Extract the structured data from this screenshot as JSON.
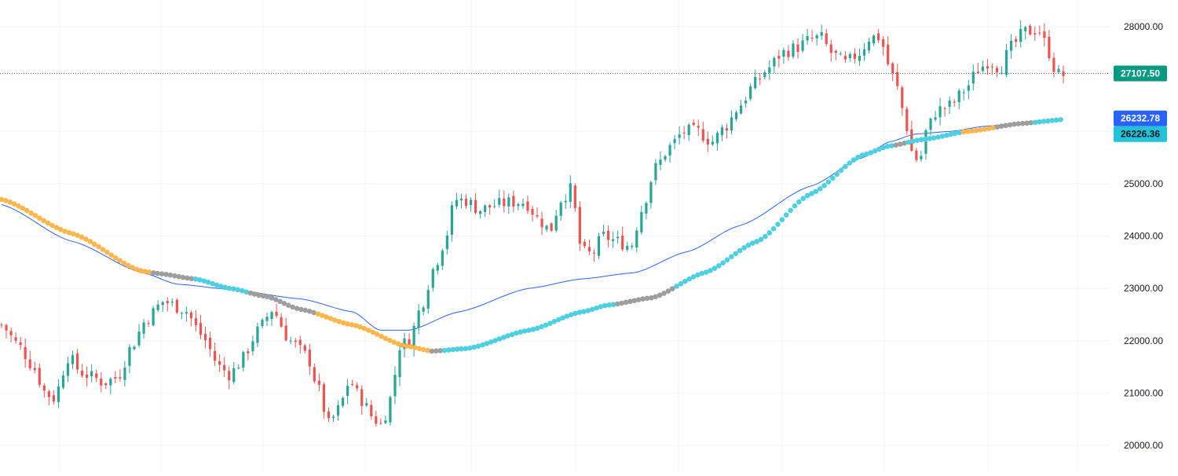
{
  "chart_data": {
    "type": "candlestick",
    "y_axis": {
      "position": "right",
      "range": [
        19550,
        28450
      ],
      "ticks": [
        20000,
        21000,
        22000,
        23000,
        24000,
        25000,
        28000
      ],
      "tick_labels": [
        "20000.00",
        "21000.00",
        "22000.00",
        "23000.00",
        "24000.00",
        "25000.00",
        "28000.00"
      ]
    },
    "grid": true,
    "last_price": {
      "value": 27107.5,
      "label": "27107.50",
      "style": "dotted"
    },
    "value_labels": [
      {
        "value": 26232.78,
        "label": "26232.78",
        "color": "#2962ff"
      },
      {
        "value": 26226.36,
        "label": "26226.36",
        "color": "#22c3d6"
      }
    ],
    "colors": {
      "up": "#26a69a",
      "down": "#ef5350",
      "grid": "#f0f3fa",
      "axis_text": "#131722",
      "last_price_bg": "#089981",
      "sma_line": "#2962ff",
      "trend_dots": {
        "down": "#ffb74d",
        "neutral": "#9e9e9e",
        "up": "#4dd0e1"
      }
    },
    "candles": {
      "count": 225,
      "keyframes": [
        [
          0,
          22300
        ],
        [
          10,
          21900
        ],
        [
          18,
          21500
        ],
        [
          25,
          21000
        ],
        [
          30,
          20900
        ],
        [
          38,
          21700
        ],
        [
          45,
          21400
        ],
        [
          52,
          21300
        ],
        [
          58,
          21200
        ],
        [
          66,
          21300
        ],
        [
          74,
          21900
        ],
        [
          82,
          22400
        ],
        [
          92,
          22750
        ],
        [
          104,
          22600
        ],
        [
          114,
          22100
        ],
        [
          124,
          21500
        ],
        [
          130,
          21350
        ],
        [
          136,
          21600
        ],
        [
          146,
          22200
        ],
        [
          154,
          22600
        ],
        [
          164,
          22000
        ],
        [
          174,
          21700
        ],
        [
          180,
          21100
        ],
        [
          186,
          20400
        ],
        [
          192,
          20700
        ],
        [
          198,
          21250
        ],
        [
          204,
          20900
        ],
        [
          212,
          20500
        ],
        [
          216,
          20400
        ],
        [
          222,
          20950
        ],
        [
          226,
          21900
        ],
        [
          232,
          22000
        ],
        [
          238,
          22600
        ],
        [
          246,
          23400
        ],
        [
          252,
          23900
        ],
        [
          258,
          24700
        ],
        [
          264,
          24680
        ],
        [
          272,
          24500
        ],
        [
          282,
          24600
        ],
        [
          290,
          24650
        ],
        [
          298,
          24650
        ],
        [
          306,
          24300
        ],
        [
          312,
          24100
        ],
        [
          318,
          24700
        ],
        [
          324,
          24900
        ],
        [
          330,
          23700
        ],
        [
          336,
          23650
        ],
        [
          342,
          24000
        ],
        [
          350,
          23900
        ],
        [
          358,
          23800
        ],
        [
          364,
          24500
        ],
        [
          372,
          25300
        ],
        [
          380,
          25700
        ],
        [
          388,
          26000
        ],
        [
          396,
          26000
        ],
        [
          404,
          25800
        ],
        [
          412,
          26100
        ],
        [
          420,
          26500
        ],
        [
          428,
          26900
        ],
        [
          436,
          27200
        ],
        [
          444,
          27500
        ],
        [
          452,
          27600
        ],
        [
          460,
          27750
        ],
        [
          466,
          27800
        ],
        [
          472,
          27500
        ],
        [
          480,
          27300
        ],
        [
          488,
          27500
        ],
        [
          494,
          27800
        ],
        [
          500,
          27800
        ],
        [
          504,
          27300
        ],
        [
          510,
          26800
        ],
        [
          514,
          26200
        ],
        [
          518,
          25600
        ],
        [
          522,
          25400
        ],
        [
          526,
          26000
        ],
        [
          532,
          26400
        ],
        [
          540,
          26500
        ],
        [
          548,
          26800
        ],
        [
          556,
          27200
        ],
        [
          562,
          27350
        ],
        [
          568,
          27200
        ],
        [
          574,
          27600
        ],
        [
          582,
          27900
        ],
        [
          590,
          27950
        ],
        [
          596,
          27500
        ],
        [
          600,
          27100
        ],
        [
          604,
          27080
        ]
      ]
    },
    "sma_line": {
      "points": [
        [
          0,
          24600
        ],
        [
          40,
          23900
        ],
        [
          80,
          23300
        ],
        [
          100,
          23080
        ],
        [
          130,
          22980
        ],
        [
          170,
          22800
        ],
        [
          200,
          22550
        ],
        [
          215,
          22200
        ],
        [
          232,
          22200
        ],
        [
          260,
          22550
        ],
        [
          300,
          23000
        ],
        [
          330,
          23180
        ],
        [
          360,
          23300
        ],
        [
          390,
          23700
        ],
        [
          420,
          24200
        ],
        [
          460,
          24950
        ],
        [
          490,
          25500
        ],
        [
          505,
          25800
        ],
        [
          520,
          25950
        ],
        [
          540,
          26000
        ],
        [
          560,
          26100
        ],
        [
          590,
          26200
        ],
        [
          604,
          26232.78
        ]
      ]
    },
    "trend_dots": {
      "points": [
        [
          0,
          24700
        ],
        [
          40,
          24050
        ],
        [
          80,
          23330
        ],
        [
          90,
          23280
        ],
        [
          110,
          23180
        ],
        [
          130,
          23000
        ],
        [
          150,
          22850
        ],
        [
          170,
          22600
        ],
        [
          200,
          22300
        ],
        [
          230,
          21900
        ],
        [
          245,
          21800
        ],
        [
          265,
          21850
        ],
        [
          300,
          22200
        ],
        [
          330,
          22550
        ],
        [
          345,
          22680
        ],
        [
          370,
          22820
        ],
        [
          400,
          23300
        ],
        [
          430,
          23900
        ],
        [
          460,
          24800
        ],
        [
          490,
          25550
        ],
        [
          505,
          25720
        ],
        [
          525,
          25850
        ],
        [
          550,
          26000
        ],
        [
          580,
          26150
        ],
        [
          604,
          26226.36
        ]
      ],
      "segments": [
        {
          "from": 0,
          "to": 86,
          "trend": "down"
        },
        {
          "from": 86,
          "to": 110,
          "trend": "neutral"
        },
        {
          "from": 110,
          "to": 140,
          "trend": "up"
        },
        {
          "from": 140,
          "to": 180,
          "trend": "neutral"
        },
        {
          "from": 180,
          "to": 243,
          "trend": "down"
        },
        {
          "from": 243,
          "to": 252,
          "trend": "neutral"
        },
        {
          "from": 252,
          "to": 350,
          "trend": "up"
        },
        {
          "from": 350,
          "to": 382,
          "trend": "neutral"
        },
        {
          "from": 382,
          "to": 508,
          "trend": "up"
        },
        {
          "from": 508,
          "to": 514,
          "trend": "neutral"
        },
        {
          "from": 514,
          "to": 546,
          "trend": "up"
        },
        {
          "from": 546,
          "to": 566,
          "trend": "down"
        },
        {
          "from": 566,
          "to": 586,
          "trend": "neutral"
        },
        {
          "from": 586,
          "to": 604,
          "trend": "up"
        }
      ]
    }
  }
}
